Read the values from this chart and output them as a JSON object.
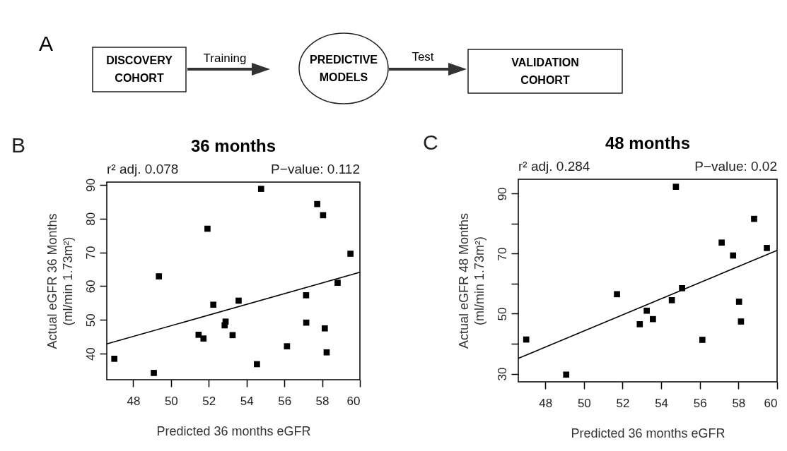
{
  "chart_data": [
    {
      "type": "other",
      "annotations": [
        "A",
        "DISCOVERY COHORT",
        "Training",
        "PREDICTIVE MODELS",
        "Test",
        "VALIDATION COHORT"
      ]
    },
    {
      "type": "scatter",
      "title": "36 months",
      "xlabel": "Predicted 36 months eGFR",
      "ylabel": "Actual eGFR 36 Months\n(ml/min 1.73m²)",
      "annotations": [
        "B",
        "r² adj. 0.078",
        "P−value: 0.112"
      ],
      "xlim": [
        46.6,
        60
      ],
      "xticks": [
        48,
        50,
        52,
        54,
        56,
        58,
        60
      ],
      "ylim": [
        32.3,
        90.8
      ],
      "yticks": [
        40,
        50,
        60,
        70,
        80,
        90
      ],
      "series": [
        {
          "color": "#000000",
          "marker": "square",
          "x": [
            47.0,
            49.09,
            49.36,
            51.93,
            51.46,
            51.72,
            52.24,
            52.89,
            52.84,
            53.26,
            53.58,
            54.77,
            54.55,
            56.14,
            57.15,
            57.16,
            57.74,
            58.05,
            58.14,
            58.24,
            58.82,
            59.5
          ],
          "values": [
            38.5,
            34.3,
            62.9,
            77.0,
            45.6,
            44.5,
            54.5,
            49.5,
            48.4,
            45.5,
            55.7,
            88.8,
            36.9,
            42.2,
            57.3,
            49.2,
            84.3,
            81.0,
            47.5,
            40.4,
            61.0,
            69.6
          ]
        },
        {
          "type": "line",
          "color": "#000000",
          "x": [
            46.6,
            60
          ],
          "values": [
            42.9,
            64.1
          ]
        }
      ]
    },
    {
      "type": "scatter",
      "title": "48 months",
      "xlabel": "Predicted 36 months eGFR",
      "ylabel": "Actual eGFR 48 Months\n(ml/min 1.73m²)",
      "annotations": [
        "C",
        "r² adj. 0.284",
        "P−value: 0.02"
      ],
      "xlim": [
        46.6,
        60
      ],
      "xticks": [
        48,
        50,
        52,
        54,
        56,
        58,
        60
      ],
      "ylim": [
        27.3,
        94.8
      ],
      "yticks": [
        30,
        {
          "value": 40,
          "label": null
        },
        50,
        {
          "value": 60,
          "label": null
        },
        70,
        {
          "value": 80,
          "label": null
        },
        90
      ],
      "series": [
        {
          "color": "#000000",
          "marker": "square",
          "x": [
            47.01,
            49.08,
            51.71,
            52.89,
            53.25,
            53.57,
            54.55,
            54.76,
            55.08,
            56.13,
            57.13,
            57.72,
            58.03,
            58.13,
            58.81,
            59.47
          ],
          "values": [
            41.4,
            29.7,
            56.5,
            46.5,
            51.0,
            48.2,
            54.5,
            92.3,
            58.5,
            41.3,
            73.7,
            69.4,
            54.0,
            47.4,
            81.6,
            71.9
          ]
        },
        {
          "type": "line",
          "color": "#000000",
          "x": [
            46.6,
            60
          ],
          "values": [
            35.1,
            71.1
          ]
        }
      ]
    }
  ]
}
